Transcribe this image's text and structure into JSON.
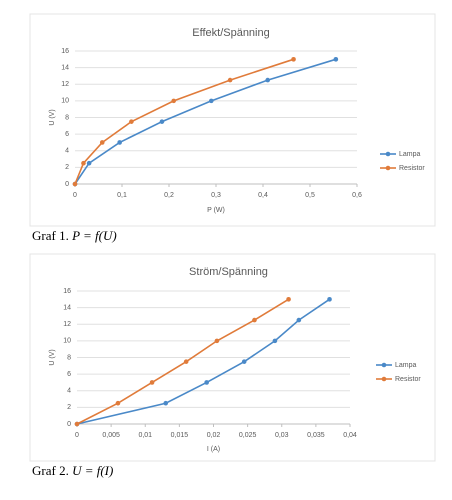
{
  "chart_data": [
    {
      "type": "line",
      "title": "Effekt/Spänning",
      "x_label": "P (W)",
      "y_label": "U (V)",
      "xlim": [
        0,
        0.6
      ],
      "xticks": [
        0,
        {
          "value": 0.1,
          "label": "0,1"
        },
        {
          "value": 0.2,
          "label": "0,2"
        },
        {
          "value": 0.3,
          "label": "0,3"
        },
        {
          "value": 0.4,
          "label": "0,4"
        },
        {
          "value": 0.5,
          "label": "0,5"
        },
        {
          "value": 0.6,
          "label": "0,6"
        }
      ],
      "ylim": [
        0,
        16
      ],
      "yticks": [
        0,
        2,
        4,
        6,
        8,
        10,
        12,
        14,
        16
      ],
      "grid": true,
      "legend": "right",
      "series": [
        {
          "name": "Lampa",
          "color": "#4a89c8",
          "x": [
            0,
            0.03,
            0.095,
            0.185,
            0.29,
            0.41,
            0.555
          ],
          "values": [
            0,
            2.5,
            5,
            7.5,
            10,
            12.5,
            15
          ]
        },
        {
          "name": "Resistor",
          "color": "#e07b3a",
          "x": [
            0,
            0.018,
            0.058,
            0.12,
            0.21,
            0.33,
            0.465
          ],
          "values": [
            0,
            2.5,
            5,
            7.5,
            10,
            12.5,
            15
          ]
        }
      ]
    },
    {
      "type": "line",
      "title": "Ström/Spänning",
      "x_label": "I (A)",
      "y_label": "U (V)",
      "xlim": [
        0,
        0.04
      ],
      "xticks": [
        0,
        {
          "value": 0.005,
          "label": "0,005"
        },
        {
          "value": 0.01,
          "label": "0,01"
        },
        {
          "value": 0.015,
          "label": "0,015"
        },
        {
          "value": 0.02,
          "label": "0,02"
        },
        {
          "value": 0.025,
          "label": "0,025"
        },
        {
          "value": 0.03,
          "label": "0,03"
        },
        {
          "value": 0.035,
          "label": "0,035"
        },
        {
          "value": 0.04,
          "label": "0,04"
        }
      ],
      "ylim": [
        0,
        16
      ],
      "yticks": [
        0,
        2,
        4,
        6,
        8,
        10,
        12,
        14,
        16
      ],
      "grid": true,
      "legend": "right",
      "series": [
        {
          "name": "Lampa",
          "color": "#4a89c8",
          "x": [
            0,
            0.013,
            0.019,
            0.0245,
            0.029,
            0.0325,
            0.037
          ],
          "values": [
            0,
            2.5,
            5,
            7.5,
            10,
            12.5,
            15
          ]
        },
        {
          "name": "Resistor",
          "color": "#e07b3a",
          "x": [
            0,
            0.006,
            0.011,
            0.016,
            0.0205,
            0.026,
            0.031
          ],
          "values": [
            0,
            2.5,
            5,
            7.5,
            10,
            12.5,
            15
          ]
        }
      ]
    }
  ],
  "captions": [
    {
      "label": "Graf 1.",
      "formula": "P = f(U)"
    },
    {
      "label": "Graf 2.",
      "formula": "U = f(I)"
    }
  ]
}
